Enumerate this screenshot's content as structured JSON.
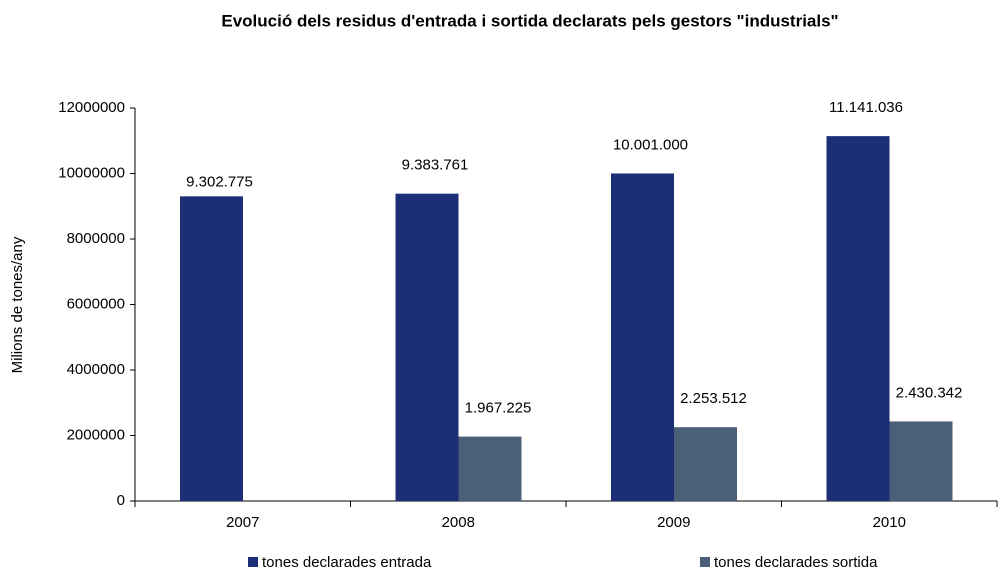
{
  "chart_data": {
    "type": "bar",
    "title": "Evolució dels residus d'entrada i sortida declarats pels gestors \"industrials\"",
    "ylabel": "Milions de tones/any",
    "categories": [
      "2007",
      "2008",
      "2009",
      "2010"
    ],
    "series": [
      {
        "name": "tones declarades entrada",
        "color": "#1b2e76",
        "values": [
          9302775,
          9383761,
          10001000,
          11141036
        ],
        "value_labels": [
          "9.302.775",
          "9.383.761",
          "10.001.000",
          "11.141.036"
        ]
      },
      {
        "name": "tones declarades sortida",
        "color": "#4b6078",
        "values": [
          null,
          1967225,
          2253512,
          2430342
        ],
        "value_labels": [
          null,
          "1.967.225",
          "2.253.512",
          "2.430.342"
        ]
      }
    ],
    "ylim": [
      0,
      12000000
    ],
    "yticks": [
      0,
      2000000,
      4000000,
      6000000,
      8000000,
      10000000,
      12000000
    ],
    "grid": false,
    "legend": "bottom"
  }
}
